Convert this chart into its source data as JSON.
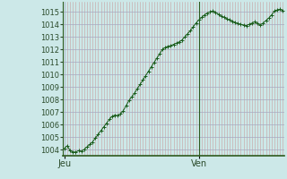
{
  "bg_color": "#cce8e8",
  "line_color": "#1a5c1a",
  "marker_color": "#1a5c1a",
  "tick_label_color": "#2a4a2a",
  "axis_color": "#2d5a1e",
  "ylim": [
    1003.5,
    1015.8
  ],
  "yticks": [
    1004,
    1005,
    1006,
    1007,
    1008,
    1009,
    1010,
    1011,
    1012,
    1013,
    1014,
    1015
  ],
  "xtick_labels": [
    "Jeu",
    "Ven"
  ],
  "xtick_positions": [
    0,
    48
  ],
  "vline_x": 48,
  "y_values": [
    1004.1,
    1004.3,
    1003.9,
    1003.8,
    1003.8,
    1003.9,
    1003.85,
    1004.0,
    1004.2,
    1004.4,
    1004.6,
    1004.9,
    1005.2,
    1005.5,
    1005.8,
    1006.1,
    1006.4,
    1006.65,
    1006.75,
    1006.7,
    1006.85,
    1007.1,
    1007.5,
    1007.9,
    1008.2,
    1008.5,
    1008.85,
    1009.2,
    1009.55,
    1009.9,
    1010.25,
    1010.6,
    1010.95,
    1011.3,
    1011.65,
    1012.0,
    1012.15,
    1012.25,
    1012.3,
    1012.4,
    1012.5,
    1012.6,
    1012.75,
    1013.0,
    1013.25,
    1013.5,
    1013.8,
    1014.1,
    1014.35,
    1014.55,
    1014.75,
    1014.9,
    1015.0,
    1015.05,
    1014.95,
    1014.8,
    1014.65,
    1014.55,
    1014.45,
    1014.35,
    1014.25,
    1014.15,
    1014.05,
    1014.0,
    1013.95,
    1013.9,
    1014.0,
    1014.1,
    1014.2,
    1014.05,
    1013.95,
    1014.1,
    1014.3,
    1014.5,
    1014.75,
    1015.05,
    1015.15,
    1015.2,
    1015.1
  ]
}
